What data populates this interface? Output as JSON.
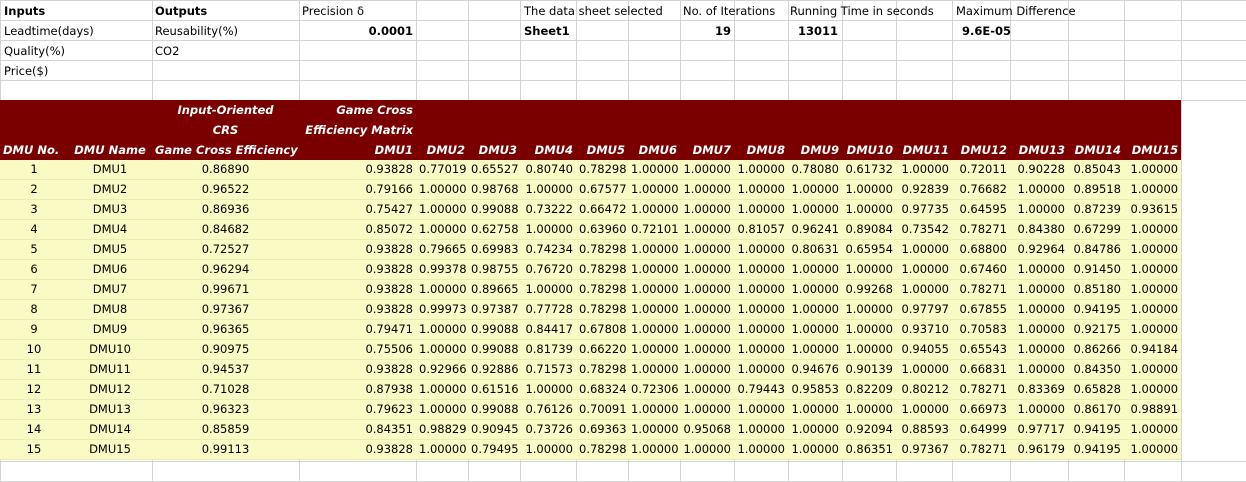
{
  "info": {
    "inputs_header": "Inputs",
    "inputs": [
      "Leadtime(days)",
      "Quality(%)",
      "Price($)"
    ],
    "outputs_header": "Outputs",
    "outputs": [
      "Reusability(%)",
      "CO2"
    ],
    "precision_label": "Precision δ",
    "precision_value": "0.0001",
    "sheet_label": "The data sheet selected",
    "sheet_value": "Sheet1",
    "iterations_label": "No. of Iterations",
    "iterations_value": "19",
    "runtime_label": "Running Time in seconds",
    "runtime_value": "13011",
    "maxdiff_label": "Maximum Difference",
    "maxdiff_value": "9.6E-05"
  },
  "table": {
    "header_io_line1": "Input-Oriented",
    "header_io_line2": "CRS",
    "header_gcem_line1": "Game Cross",
    "header_gcem_line2": "Efficiency Matrix",
    "col_dmu_no": "DMU No.",
    "col_dmu_name": "DMU Name",
    "col_gce": "Game Cross Efficiency",
    "dmu_columns": [
      "DMU1",
      "DMU2",
      "DMU3",
      "DMU4",
      "DMU5",
      "DMU6",
      "DMU7",
      "DMU8",
      "DMU9",
      "DMU10",
      "DMU11",
      "DMU12",
      "DMU13",
      "DMU14",
      "DMU15"
    ],
    "rows": [
      {
        "no": "1",
        "name": "DMU1",
        "gce": "0.86890",
        "m": [
          "0.93828",
          "0.77019",
          "0.65527",
          "0.80740",
          "0.78298",
          "1.00000",
          "1.00000",
          "1.00000",
          "0.78080",
          "0.61732",
          "1.00000",
          "0.72011",
          "0.90228",
          "0.85043",
          "1.00000"
        ]
      },
      {
        "no": "2",
        "name": "DMU2",
        "gce": "0.96522",
        "m": [
          "0.79166",
          "1.00000",
          "0.98768",
          "1.00000",
          "0.67577",
          "1.00000",
          "1.00000",
          "1.00000",
          "1.00000",
          "1.00000",
          "0.92839",
          "0.76682",
          "1.00000",
          "0.89518",
          "1.00000"
        ]
      },
      {
        "no": "3",
        "name": "DMU3",
        "gce": "0.86936",
        "m": [
          "0.75427",
          "1.00000",
          "0.99088",
          "0.73222",
          "0.66472",
          "1.00000",
          "1.00000",
          "1.00000",
          "1.00000",
          "1.00000",
          "0.97735",
          "0.64595",
          "1.00000",
          "0.87239",
          "0.93615"
        ]
      },
      {
        "no": "4",
        "name": "DMU4",
        "gce": "0.84682",
        "m": [
          "0.85072",
          "1.00000",
          "0.62758",
          "1.00000",
          "0.63960",
          "0.72101",
          "1.00000",
          "0.81057",
          "0.96241",
          "0.89084",
          "0.73542",
          "0.78271",
          "0.84380",
          "0.67299",
          "1.00000"
        ]
      },
      {
        "no": "5",
        "name": "DMU5",
        "gce": "0.72527",
        "m": [
          "0.93828",
          "0.79665",
          "0.69983",
          "0.74234",
          "0.78298",
          "1.00000",
          "1.00000",
          "1.00000",
          "0.80631",
          "0.65954",
          "1.00000",
          "0.68800",
          "0.92964",
          "0.84786",
          "1.00000"
        ]
      },
      {
        "no": "6",
        "name": "DMU6",
        "gce": "0.96294",
        "m": [
          "0.93828",
          "0.99378",
          "0.98755",
          "0.76720",
          "0.78298",
          "1.00000",
          "1.00000",
          "1.00000",
          "1.00000",
          "1.00000",
          "1.00000",
          "0.67460",
          "1.00000",
          "0.91450",
          "1.00000"
        ]
      },
      {
        "no": "7",
        "name": "DMU7",
        "gce": "0.99671",
        "m": [
          "0.93828",
          "1.00000",
          "0.89665",
          "1.00000",
          "0.78298",
          "1.00000",
          "1.00000",
          "1.00000",
          "1.00000",
          "0.99268",
          "1.00000",
          "0.78271",
          "1.00000",
          "0.85180",
          "1.00000"
        ]
      },
      {
        "no": "8",
        "name": "DMU8",
        "gce": "0.97367",
        "m": [
          "0.93828",
          "0.99973",
          "0.97387",
          "0.77728",
          "0.78298",
          "1.00000",
          "1.00000",
          "1.00000",
          "1.00000",
          "1.00000",
          "0.97797",
          "0.67855",
          "1.00000",
          "0.94195",
          "1.00000"
        ]
      },
      {
        "no": "9",
        "name": "DMU9",
        "gce": "0.96365",
        "m": [
          "0.79471",
          "1.00000",
          "0.99088",
          "0.84417",
          "0.67808",
          "1.00000",
          "1.00000",
          "1.00000",
          "1.00000",
          "1.00000",
          "0.93710",
          "0.70583",
          "1.00000",
          "0.92175",
          "1.00000"
        ]
      },
      {
        "no": "10",
        "name": "DMU10",
        "gce": "0.90975",
        "m": [
          "0.75506",
          "1.00000",
          "0.99088",
          "0.81739",
          "0.66220",
          "1.00000",
          "1.00000",
          "1.00000",
          "1.00000",
          "1.00000",
          "0.94055",
          "0.65543",
          "1.00000",
          "0.86266",
          "0.94184"
        ]
      },
      {
        "no": "11",
        "name": "DMU11",
        "gce": "0.94537",
        "m": [
          "0.93828",
          "0.92966",
          "0.92886",
          "0.71573",
          "0.78298",
          "1.00000",
          "1.00000",
          "1.00000",
          "0.94676",
          "0.90139",
          "1.00000",
          "0.66831",
          "1.00000",
          "0.84350",
          "1.00000"
        ]
      },
      {
        "no": "12",
        "name": "DMU12",
        "gce": "0.71028",
        "m": [
          "0.87938",
          "1.00000",
          "0.61516",
          "1.00000",
          "0.68324",
          "0.72306",
          "1.00000",
          "0.79443",
          "0.95853",
          "0.82209",
          "0.80212",
          "0.78271",
          "0.83369",
          "0.65828",
          "1.00000"
        ]
      },
      {
        "no": "13",
        "name": "DMU13",
        "gce": "0.96323",
        "m": [
          "0.79623",
          "1.00000",
          "0.99088",
          "0.76126",
          "0.70091",
          "1.00000",
          "1.00000",
          "1.00000",
          "1.00000",
          "1.00000",
          "1.00000",
          "0.66973",
          "1.00000",
          "0.86170",
          "0.98891"
        ]
      },
      {
        "no": "14",
        "name": "DMU14",
        "gce": "0.85859",
        "m": [
          "0.84351",
          "0.98829",
          "0.90945",
          "0.73726",
          "0.69363",
          "1.00000",
          "0.95068",
          "1.00000",
          "1.00000",
          "0.92094",
          "0.88593",
          "0.64999",
          "0.97717",
          "0.94195",
          "1.00000"
        ]
      },
      {
        "no": "15",
        "name": "DMU15",
        "gce": "0.99113",
        "m": [
          "0.93828",
          "1.00000",
          "0.79495",
          "1.00000",
          "0.78298",
          "1.00000",
          "1.00000",
          "1.00000",
          "1.00000",
          "0.86351",
          "0.97367",
          "0.78271",
          "0.96179",
          "0.94195",
          "1.00000"
        ]
      }
    ]
  }
}
